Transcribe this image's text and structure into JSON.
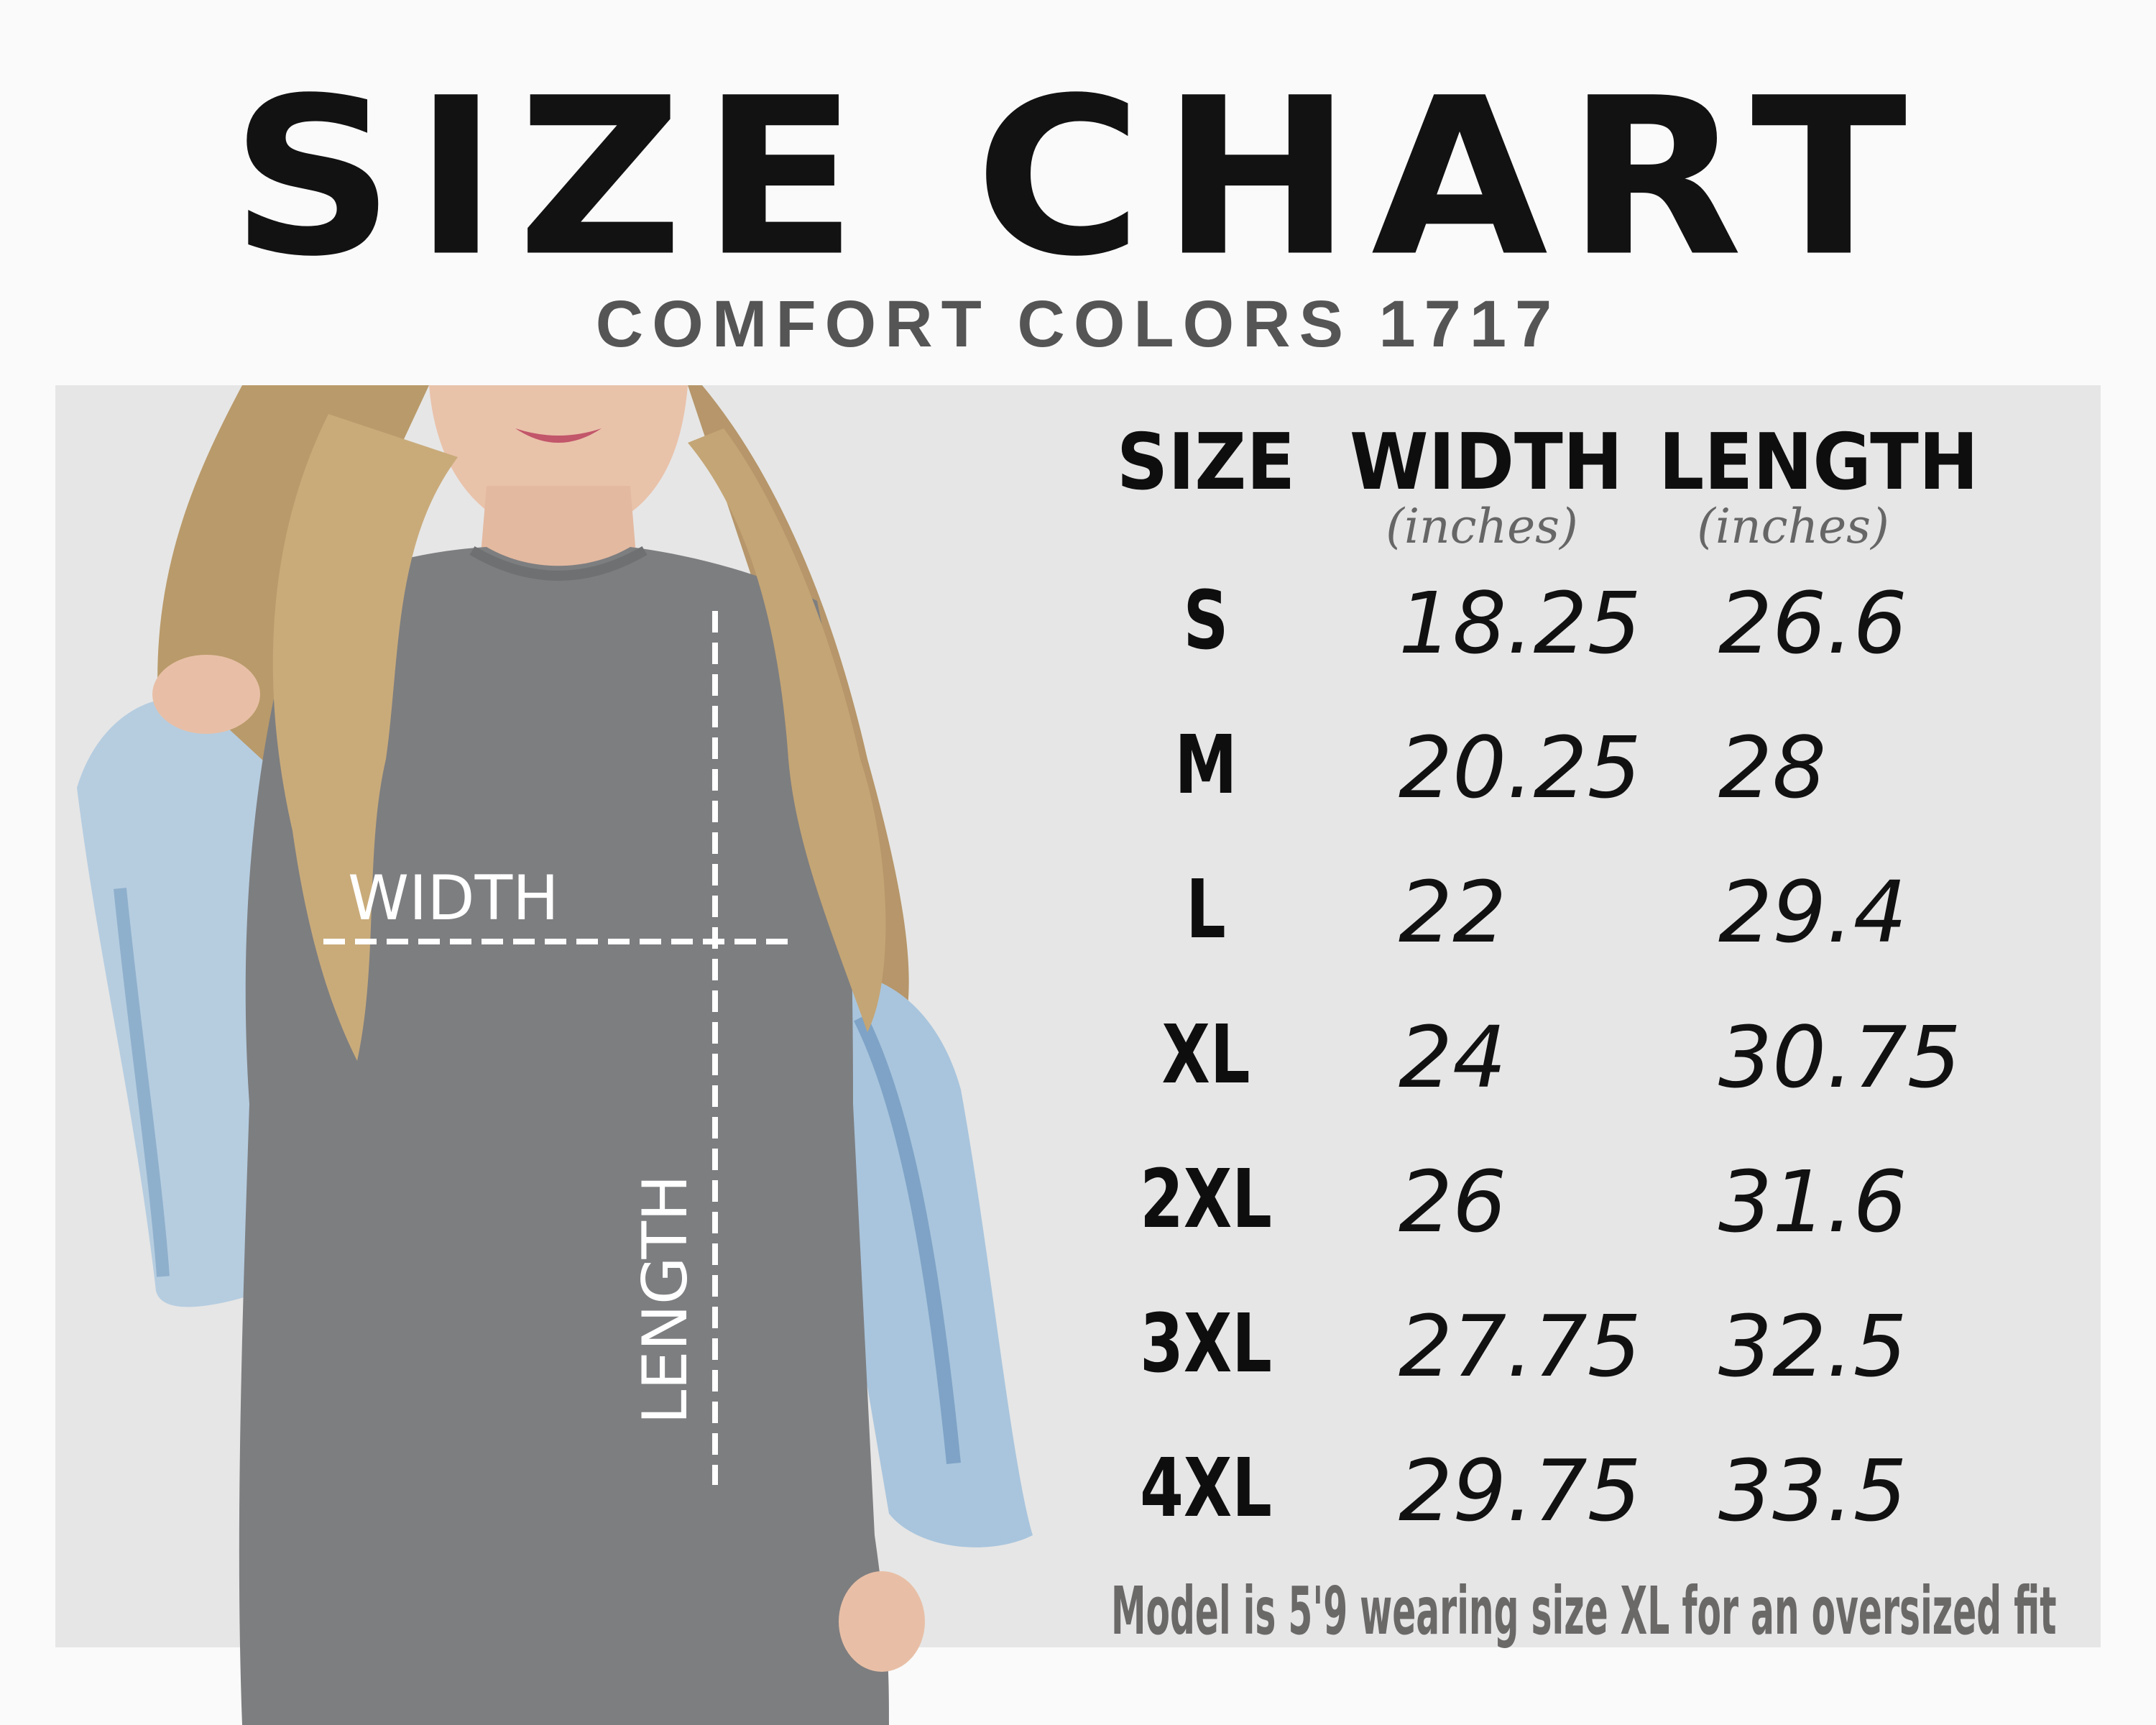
{
  "title": "SIZE CHART",
  "subtitle": "COMFORT COLORS 1717",
  "photo": {
    "width_label": "WIDTH",
    "length_label": "LENGTH"
  },
  "table": {
    "headers": [
      {
        "label": "SIZE",
        "unit": ""
      },
      {
        "label": "WIDTH",
        "unit": "(inches)"
      },
      {
        "label": "LENGTH",
        "unit": "(inches)"
      }
    ],
    "rows": [
      {
        "size": "S",
        "width": "18.25",
        "length": "26.6"
      },
      {
        "size": "M",
        "width": "20.25",
        "length": "28"
      },
      {
        "size": "L",
        "width": "22",
        "length": "29.4"
      },
      {
        "size": "XL",
        "width": "24",
        "length": "30.75"
      },
      {
        "size": "2XL",
        "width": "26",
        "length": "31.6"
      },
      {
        "size": "3XL",
        "width": "27.75",
        "length": "32.5"
      },
      {
        "size": "4XL",
        "width": "29.75",
        "length": "33.5"
      }
    ]
  },
  "note": "Model is 5'9 wearing size XL for an oversized fit",
  "colors": {
    "background": "#fafafa",
    "panel": "#e6e6e6",
    "shirt": "#7d7e80",
    "text": "#111111",
    "note": "#6b6868"
  }
}
